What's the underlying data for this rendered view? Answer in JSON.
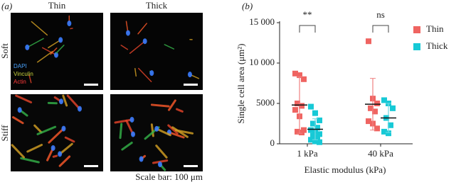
{
  "panel_a": {
    "label": "(a)",
    "columns": [
      "Thin",
      "Thick"
    ],
    "rows": [
      "Soft",
      "Stiff"
    ],
    "stains": [
      "DAPI",
      "Vinculin",
      "Actin"
    ],
    "scale_bar": "Scale bar: 100 μm"
  },
  "chart_data": {
    "type": "dotplot",
    "panel_label": "(b)",
    "y_label": "Single cell area (μm²)",
    "x_label": "Elastic modulus (kPa)",
    "categories": [
      "1 kPa",
      "40 kPa"
    ],
    "ylim": [
      0,
      15000
    ],
    "yticks": [
      0,
      5000,
      {
        "value": 10000,
        "label": "10 000"
      },
      {
        "value": 15000,
        "label": "15 000"
      }
    ],
    "series": [
      {
        "name": "Thin",
        "color": "#ef6461",
        "values": [
          [
            8700,
            8500,
            8000,
            5000,
            4700,
            4200,
            3400,
            1700,
            1500,
            1400
          ],
          [
            12700,
            5600,
            5000,
            4400,
            4000,
            2800,
            2500,
            1900
          ]
        ],
        "means": [
          4800,
          4900
        ],
        "errors": [
          3500,
          3200
        ]
      },
      {
        "name": "Thick",
        "color": "#17c9d6",
        "values": [
          [
            4600,
            3800,
            2900,
            2500,
            2000,
            1700,
            1500,
            1200,
            1000,
            800,
            500,
            300,
            200
          ],
          [
            5400,
            5000,
            4400,
            3200,
            2300,
            1500,
            1300
          ]
        ],
        "means": [
          1800,
          3200
        ],
        "errors": [
          1300,
          1800
        ]
      }
    ],
    "annotations": [
      "**",
      "ns"
    ],
    "legend": "right"
  }
}
